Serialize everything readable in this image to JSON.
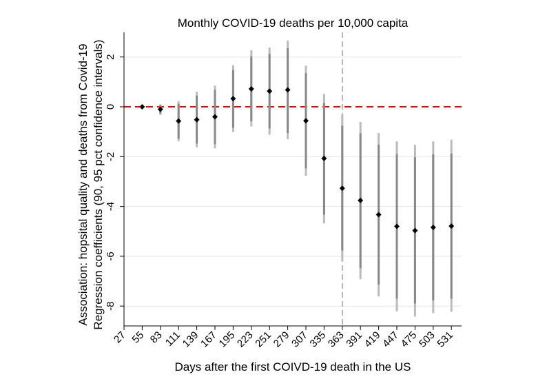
{
  "chart_data": {
    "type": "scatter",
    "title": "Monthly COVID-19 deaths per 10,000 capita",
    "xlabel": "Days after the first COIVD-19 death in the US",
    "ylabel_lines": [
      "Association: hopsital quality and deaths from Covid-19",
      "Regression coefficients (90, 95 pct confidence intervals)"
    ],
    "x_ticks": [
      27,
      55,
      83,
      111,
      139,
      167,
      195,
      223,
      251,
      279,
      307,
      335,
      363,
      391,
      419,
      447,
      475,
      503,
      531
    ],
    "y_ticks": [
      2,
      0,
      -2,
      -4,
      -6,
      -8
    ],
    "xlim": [
      27,
      531
    ],
    "ylim": [
      -8.8,
      3.0
    ],
    "reference_lines": {
      "horizontal_zero": {
        "y": 0,
        "color": "#ff0000",
        "style": "dashed"
      },
      "vertical": {
        "x": 363,
        "color": "#999999",
        "style": "dashed"
      }
    },
    "grid": "horizontal",
    "series": [
      {
        "x": [
          55,
          83,
          111,
          139,
          167,
          195,
          223,
          251,
          279,
          307,
          335,
          363,
          391,
          419,
          447,
          475,
          503,
          531
        ],
        "estimate": [
          0.0,
          -0.1,
          -0.57,
          -0.52,
          -0.4,
          0.33,
          0.72,
          0.63,
          0.68,
          -0.56,
          -2.07,
          -3.27,
          -3.76,
          -4.33,
          -4.8,
          -4.97,
          -4.84,
          -4.79
        ],
        "ci95_low": [
          -0.07,
          -0.32,
          -1.38,
          -1.62,
          -1.67,
          -1.02,
          -0.79,
          -1.12,
          -1.3,
          -2.77,
          -4.68,
          -6.2,
          -6.92,
          -7.61,
          -8.21,
          -8.42,
          -8.28,
          -8.23
        ],
        "ci95_high": [
          0.07,
          0.1,
          0.22,
          0.6,
          0.85,
          1.67,
          2.27,
          2.38,
          2.66,
          1.65,
          0.52,
          -0.33,
          -0.61,
          -1.05,
          -1.39,
          -1.53,
          -1.39,
          -1.32
        ],
        "ci90_low": [
          -0.05,
          -0.28,
          -1.28,
          -1.48,
          -1.5,
          -0.84,
          -0.58,
          -0.87,
          -1.05,
          -2.47,
          -4.33,
          -5.77,
          -6.48,
          -7.14,
          -7.7,
          -7.9,
          -7.77,
          -7.7
        ],
        "ci90_high": [
          0.05,
          0.07,
          0.12,
          0.45,
          0.68,
          1.47,
          2.02,
          2.12,
          2.35,
          1.35,
          0.15,
          -0.76,
          -1.06,
          -1.52,
          -1.9,
          -2.03,
          -1.91,
          -1.88
        ]
      }
    ],
    "colors": {
      "ci95": "#bbbbbb",
      "ci90": "#888888",
      "point": "#000000",
      "zero_line": "#ff0000",
      "vline": "#999999",
      "grid": "#e5e5e5",
      "axis": "#000000"
    }
  }
}
